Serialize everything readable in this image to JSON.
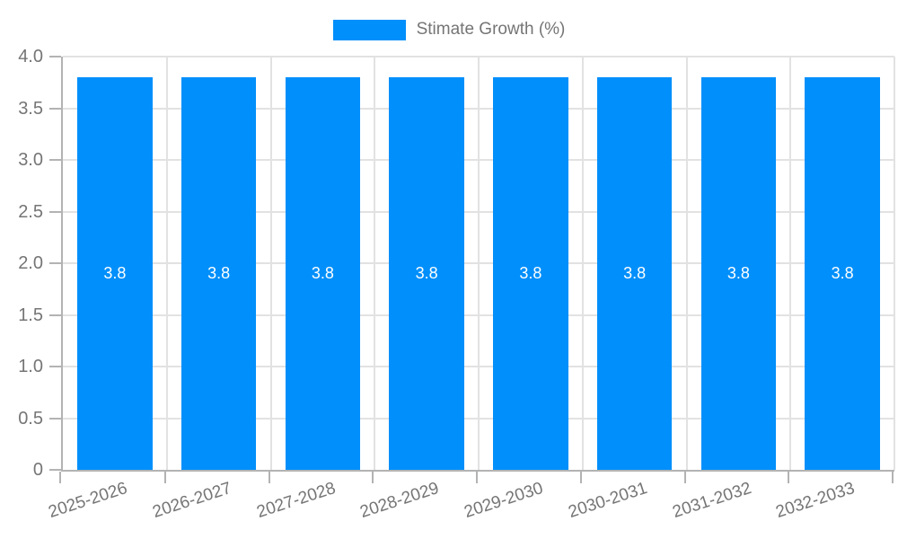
{
  "chart_data": {
    "type": "bar",
    "title": "",
    "legend": {
      "label": "Stimate Growth (%)",
      "position": "top"
    },
    "categories": [
      "2025-2026",
      "2026-2027",
      "2027-2028",
      "2028-2029",
      "2029-2030",
      "2030-2031",
      "2031-2032",
      "2032-2033"
    ],
    "series": [
      {
        "name": "Stimate Growth (%)",
        "values": [
          3.8,
          3.8,
          3.8,
          3.8,
          3.8,
          3.8,
          3.8,
          3.8
        ]
      }
    ],
    "data_labels": [
      "3.8",
      "3.8",
      "3.8",
      "3.8",
      "3.8",
      "3.8",
      "3.8",
      "3.8"
    ],
    "xlabel": "",
    "ylabel": "",
    "ylim": [
      0,
      4
    ],
    "y_ticks": [
      {
        "v": 0,
        "label": "0"
      },
      {
        "v": 0.5,
        "label": "0.5"
      },
      {
        "v": 1,
        "label": "1.0"
      },
      {
        "v": 1.5,
        "label": "1.5"
      },
      {
        "v": 2,
        "label": "2.0"
      },
      {
        "v": 2.5,
        "label": "2.5"
      },
      {
        "v": 3,
        "label": "3.0"
      },
      {
        "v": 3.5,
        "label": "3.5"
      },
      {
        "v": 4,
        "label": "4.0"
      }
    ],
    "grid": true,
    "colors": {
      "bar": "#008FFB",
      "grid": "#e2e2e2",
      "axis": "#b3b3b3",
      "text": "#757575",
      "value_label": "#ffffff",
      "background": "#ffffff"
    }
  }
}
